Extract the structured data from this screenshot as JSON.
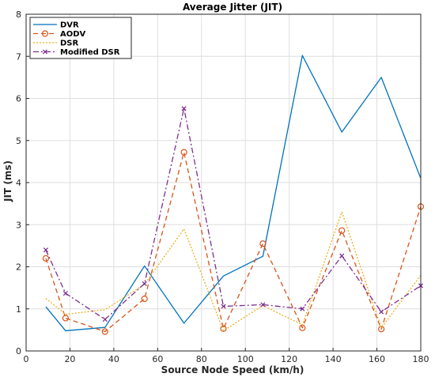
{
  "chart_data": {
    "type": "line",
    "title": "Average Jitter (JIT)",
    "xlabel": "Source Node Speed (km/h)",
    "ylabel": "JIT (ms)",
    "xlim": [
      0,
      180
    ],
    "ylim": [
      0,
      8
    ],
    "xticks": [
      0,
      20,
      40,
      60,
      80,
      100,
      120,
      140,
      160,
      180
    ],
    "yticks": [
      0,
      1,
      2,
      3,
      4,
      5,
      6,
      7,
      8
    ],
    "grid": true,
    "legend_position": "top-left",
    "x": [
      9,
      18,
      36,
      54,
      72,
      90,
      108,
      126,
      144,
      162,
      180
    ],
    "series": [
      {
        "name": "DVR",
        "color": "#0072BD",
        "dash": "solid",
        "marker": "none",
        "values": [
          1.05,
          0.48,
          0.56,
          2.02,
          0.66,
          1.78,
          2.25,
          7.02,
          5.2,
          6.5,
          4.1
        ]
      },
      {
        "name": "AODV",
        "color": "#D95319",
        "dash": "dashed",
        "marker": "circle",
        "values": [
          2.2,
          0.78,
          0.46,
          1.24,
          4.72,
          0.53,
          2.55,
          0.55,
          2.86,
          0.52,
          3.43
        ]
      },
      {
        "name": "DSR",
        "color": "#EDB120",
        "dash": "dotted",
        "marker": "none",
        "values": [
          1.25,
          0.87,
          0.98,
          1.58,
          2.9,
          0.48,
          1.08,
          0.62,
          3.3,
          0.55,
          1.8
        ]
      },
      {
        "name": "Modified DSR",
        "color": "#7E2F8E",
        "dash": "dashdot",
        "marker": "x",
        "values": [
          2.4,
          1.37,
          0.75,
          1.6,
          5.76,
          1.06,
          1.1,
          1.0,
          2.26,
          0.93,
          1.55
        ]
      }
    ]
  }
}
